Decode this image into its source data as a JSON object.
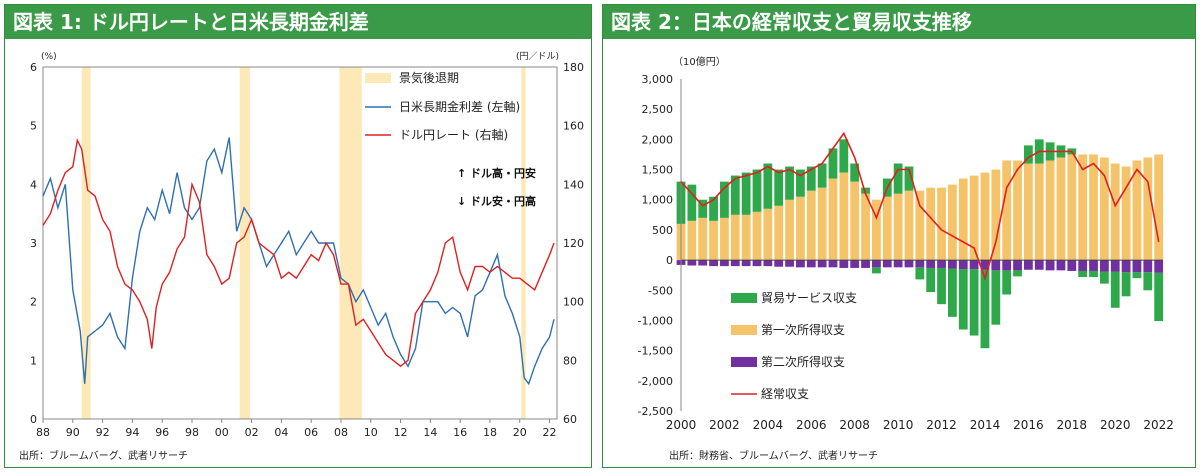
{
  "left_panel": {
    "title": "図表 1: ドル円レートと日米長期金利差",
    "source": "出所：ブルームバーグ、武者リサーチ",
    "left_unit": "(%)",
    "right_unit": "(円／ドル)",
    "note_up": "↑ ドル高・円安",
    "note_down": "↓ ドル安・円高"
  },
  "right_panel": {
    "title": "図表 2：日本の経常収支と貿易収支推移",
    "source": "出所：財務省、ブルームバーグ、武者リサーチ",
    "unit": "（10億円）"
  },
  "colors": {
    "recession": "#fde9b8",
    "rate_diff": "#2f6fb3",
    "usdjpy": "#e02020",
    "trade": "#2ea84a",
    "primary_income": "#f5c46a",
    "secondary_income": "#7030a0",
    "current_account": "#e02020"
  },
  "chart_data": [
    {
      "type": "line",
      "title": "",
      "xlabel": "",
      "ylabel_left": "(%)",
      "ylabel_right": "(円／ドル)",
      "x_ticks": [
        "88",
        "90",
        "92",
        "94",
        "96",
        "98",
        "00",
        "02",
        "04",
        "06",
        "08",
        "10",
        "12",
        "14",
        "16",
        "18",
        "20",
        "22"
      ],
      "x_tick_years": [
        1988,
        1990,
        1992,
        1994,
        1996,
        1998,
        2000,
        2002,
        2004,
        2006,
        2008,
        2010,
        2012,
        2014,
        2016,
        2018,
        2020,
        2022
      ],
      "xlim": [
        1988,
        2022.5
      ],
      "ylim_left": [
        0,
        6
      ],
      "ylim_right": [
        60,
        180
      ],
      "yticks_left": [
        0,
        1,
        2,
        3,
        4,
        5,
        6
      ],
      "yticks_right": [
        60,
        80,
        100,
        120,
        140,
        160,
        180
      ],
      "recessions": [
        [
          1990.6,
          1991.2
        ],
        [
          2001.2,
          2001.9
        ],
        [
          2007.9,
          2009.4
        ],
        [
          2020.1,
          2020.4
        ]
      ],
      "legend": [
        "景気後退期",
        "日米長期金利差 (左軸)",
        "ドル円レート (右軸)"
      ],
      "legend_position": "top-right",
      "series": [
        {
          "name": "日米長期金利差 (左軸)",
          "axis": "left",
          "x": [
            1988,
            1988.5,
            1989,
            1989.5,
            1990,
            1990.5,
            1990.8,
            1991,
            1991.5,
            1992,
            1992.5,
            1993,
            1993.5,
            1994,
            1994.5,
            1995,
            1995.5,
            1996,
            1996.5,
            1997,
            1997.5,
            1998,
            1998.5,
            1999,
            1999.5,
            2000,
            2000.5,
            2001,
            2001.5,
            2002,
            2002.5,
            2003,
            2003.5,
            2004,
            2004.5,
            2005,
            2005.5,
            2006,
            2006.5,
            2007,
            2007.5,
            2008,
            2008.5,
            2009,
            2009.5,
            2010,
            2010.5,
            2011,
            2011.5,
            2012,
            2012.5,
            2013,
            2013.5,
            2014,
            2014.5,
            2015,
            2015.5,
            2016,
            2016.5,
            2017,
            2017.5,
            2018,
            2018.5,
            2019,
            2019.5,
            2020,
            2020.3,
            2020.6,
            2021,
            2021.5,
            2022,
            2022.3
          ],
          "y": [
            3.8,
            4.1,
            3.6,
            4.0,
            2.2,
            1.5,
            0.6,
            1.4,
            1.5,
            1.6,
            1.8,
            1.4,
            1.2,
            2.4,
            3.2,
            3.6,
            3.4,
            3.9,
            3.5,
            4.2,
            3.6,
            3.4,
            3.6,
            4.4,
            4.6,
            4.2,
            4.8,
            3.2,
            3.6,
            3.4,
            3.0,
            2.6,
            2.8,
            3.0,
            3.2,
            2.8,
            3.0,
            3.2,
            3.0,
            3.0,
            3.0,
            2.4,
            2.3,
            2.0,
            2.2,
            1.9,
            1.6,
            1.8,
            1.4,
            1.1,
            0.9,
            1.2,
            2.0,
            2.0,
            2.0,
            1.8,
            1.9,
            1.8,
            1.4,
            2.1,
            2.2,
            2.5,
            2.8,
            2.1,
            1.8,
            1.4,
            0.7,
            0.6,
            0.9,
            1.2,
            1.4,
            1.7
          ]
        },
        {
          "name": "ドル円レート (右軸)",
          "axis": "right",
          "x": [
            1988,
            1988.5,
            1989,
            1989.5,
            1990,
            1990.3,
            1990.6,
            1991,
            1991.5,
            1992,
            1992.5,
            1993,
            1993.5,
            1994,
            1994.5,
            1995,
            1995.3,
            1995.6,
            1996,
            1996.5,
            1997,
            1997.5,
            1998,
            1998.5,
            1999,
            1999.5,
            2000,
            2000.5,
            2001,
            2001.5,
            2002,
            2002.5,
            2003,
            2003.5,
            2004,
            2004.5,
            2005,
            2005.5,
            2006,
            2006.5,
            2007,
            2007.5,
            2008,
            2008.5,
            2009,
            2009.5,
            2010,
            2010.5,
            2011,
            2011.5,
            2012,
            2012.5,
            2013,
            2013.5,
            2014,
            2014.5,
            2015,
            2015.5,
            2016,
            2016.5,
            2017,
            2017.5,
            2018,
            2018.5,
            2019,
            2019.5,
            2020,
            2020.5,
            2021,
            2021.5,
            2022,
            2022.3
          ],
          "y": [
            126,
            130,
            138,
            144,
            146,
            155,
            152,
            138,
            136,
            128,
            124,
            112,
            106,
            104,
            100,
            94,
            84,
            98,
            106,
            110,
            118,
            122,
            140,
            134,
            116,
            112,
            106,
            108,
            120,
            122,
            128,
            120,
            118,
            116,
            108,
            110,
            108,
            112,
            116,
            114,
            120,
            116,
            106,
            106,
            92,
            94,
            90,
            86,
            82,
            80,
            78,
            80,
            96,
            100,
            104,
            110,
            120,
            122,
            110,
            104,
            112,
            112,
            110,
            112,
            110,
            108,
            108,
            106,
            104,
            110,
            116,
            120
          ]
        }
      ]
    },
    {
      "type": "bar",
      "title": "",
      "xlabel": "",
      "ylabel": "（10億円）",
      "xlim": [
        2000,
        2022.2
      ],
      "ylim": [
        -2500,
        3000
      ],
      "yticks": [
        -2500,
        -2000,
        -1500,
        -1000,
        -500,
        0,
        500,
        1000,
        1500,
        2000,
        2500,
        3000
      ],
      "ytick_labels": [
        "-2,500",
        "-2,000",
        "-1,500",
        "-1,000",
        "-500",
        "0",
        "500",
        "1,000",
        "1,500",
        "2,000",
        "2,500",
        "3,000"
      ],
      "x_ticks": [
        "2000",
        "2002",
        "2004",
        "2006",
        "2008",
        "2010",
        "2012",
        "2014",
        "2016",
        "2018",
        "2020",
        "2022"
      ],
      "x_tick_years": [
        2000,
        2002,
        2004,
        2006,
        2008,
        2010,
        2012,
        2014,
        2016,
        2018,
        2020,
        2022
      ],
      "legend": [
        "貿易サービス収支",
        "第一次所得収支",
        "第二次所得収支",
        "経常収支"
      ],
      "legend_position": "bottom-left",
      "x": [
        2000,
        2000.5,
        2001,
        2001.5,
        2002,
        2002.5,
        2003,
        2003.5,
        2004,
        2004.5,
        2005,
        2005.5,
        2006,
        2006.5,
        2007,
        2007.5,
        2008,
        2008.5,
        2009,
        2009.5,
        2010,
        2010.5,
        2011,
        2011.5,
        2012,
        2012.5,
        2013,
        2013.5,
        2014,
        2014.5,
        2015,
        2015.5,
        2016,
        2016.5,
        2017,
        2017.5,
        2018,
        2018.5,
        2019,
        2019.5,
        2020,
        2020.5,
        2021,
        2021.5,
        2022
      ],
      "series": [
        {
          "name": "貿易サービス収支",
          "values": [
            700,
            600,
            300,
            400,
            600,
            650,
            700,
            700,
            750,
            600,
            550,
            450,
            400,
            400,
            500,
            550,
            300,
            100,
            -100,
            300,
            500,
            400,
            -200,
            -400,
            -600,
            -800,
            -1000,
            -1100,
            -1300,
            -900,
            -400,
            -100,
            300,
            400,
            300,
            200,
            100,
            -100,
            -100,
            -200,
            -600,
            -400,
            -100,
            -300,
            -800
          ]
        },
        {
          "name": "第一次所得収支",
          "values": [
            600,
            650,
            700,
            650,
            700,
            750,
            750,
            800,
            850,
            900,
            1000,
            1050,
            1150,
            1200,
            1350,
            1450,
            1300,
            1100,
            1000,
            1050,
            1100,
            1150,
            1150,
            1200,
            1200,
            1250,
            1350,
            1400,
            1450,
            1500,
            1650,
            1650,
            1600,
            1600,
            1650,
            1700,
            1750,
            1750,
            1750,
            1700,
            1600,
            1550,
            1650,
            1700,
            1750
          ]
        },
        {
          "name": "第二次所得収支",
          "values": [
            -80,
            -90,
            -90,
            -100,
            -100,
            -100,
            -100,
            -100,
            -100,
            -110,
            -110,
            -120,
            -120,
            -120,
            -120,
            -130,
            -130,
            -130,
            -120,
            -120,
            -120,
            -120,
            -120,
            -130,
            -130,
            -140,
            -150,
            -150,
            -160,
            -170,
            -170,
            -170,
            -160,
            -160,
            -170,
            -170,
            -180,
            -180,
            -180,
            -190,
            -190,
            -200,
            -200,
            -200,
            -210
          ]
        },
        {
          "name": "経常収支",
          "values": [
            1300,
            1100,
            900,
            1000,
            1200,
            1350,
            1400,
            1450,
            1550,
            1450,
            1500,
            1400,
            1500,
            1600,
            1850,
            2100,
            1700,
            1100,
            700,
            1200,
            1500,
            1500,
            900,
            700,
            500,
            400,
            300,
            200,
            -300,
            300,
            1200,
            1500,
            1700,
            1800,
            1800,
            1800,
            1800,
            1500,
            1600,
            1400,
            900,
            1200,
            1500,
            1300,
            300
          ]
        }
      ]
    }
  ]
}
